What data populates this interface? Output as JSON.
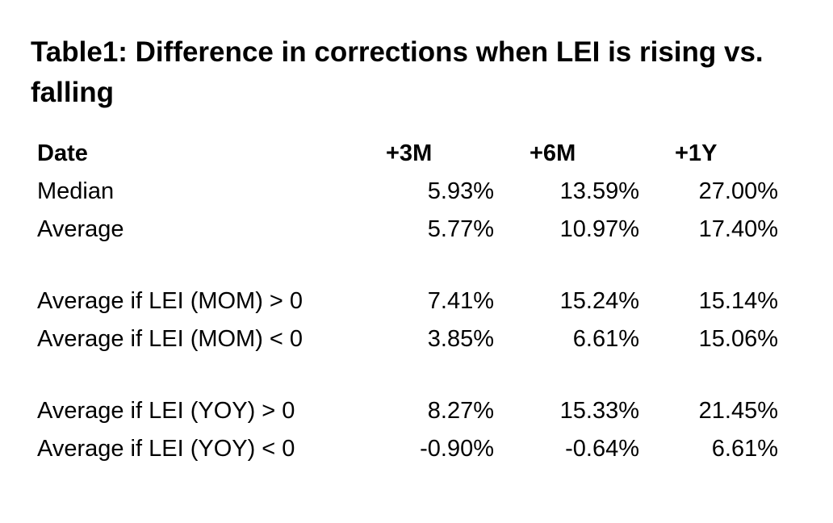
{
  "title": "Table1: Difference in corrections when LEI is rising vs. falling",
  "chart_data": {
    "type": "table",
    "title": "Table1: Difference in corrections when LEI is rising vs. falling",
    "columns": [
      "Date",
      "+3M",
      "+6M",
      "+1Y"
    ],
    "rows": [
      {
        "label": "Median",
        "values": [
          "5.93%",
          "13.59%",
          "27.00%"
        ]
      },
      {
        "label": "Average",
        "values": [
          "5.77%",
          "10.97%",
          "17.40%"
        ]
      },
      {
        "label": "Average if LEI (MOM) > 0",
        "values": [
          "7.41%",
          "15.24%",
          "15.14%"
        ]
      },
      {
        "label": "Average if LEI (MOM) < 0",
        "values": [
          "3.85%",
          "6.61%",
          "15.06%"
        ]
      },
      {
        "label": "Average if LEI (YOY) > 0",
        "values": [
          "8.27%",
          "15.33%",
          "21.45%"
        ]
      },
      {
        "label": "Average if LEI (YOY) < 0",
        "values": [
          "-0.90%",
          "-0.64%",
          "6.61%"
        ]
      }
    ],
    "layout": {
      "grid": false,
      "value_alignment": "right",
      "groups": [
        "overall",
        "LEI MOM",
        "LEI YOY"
      ]
    }
  }
}
